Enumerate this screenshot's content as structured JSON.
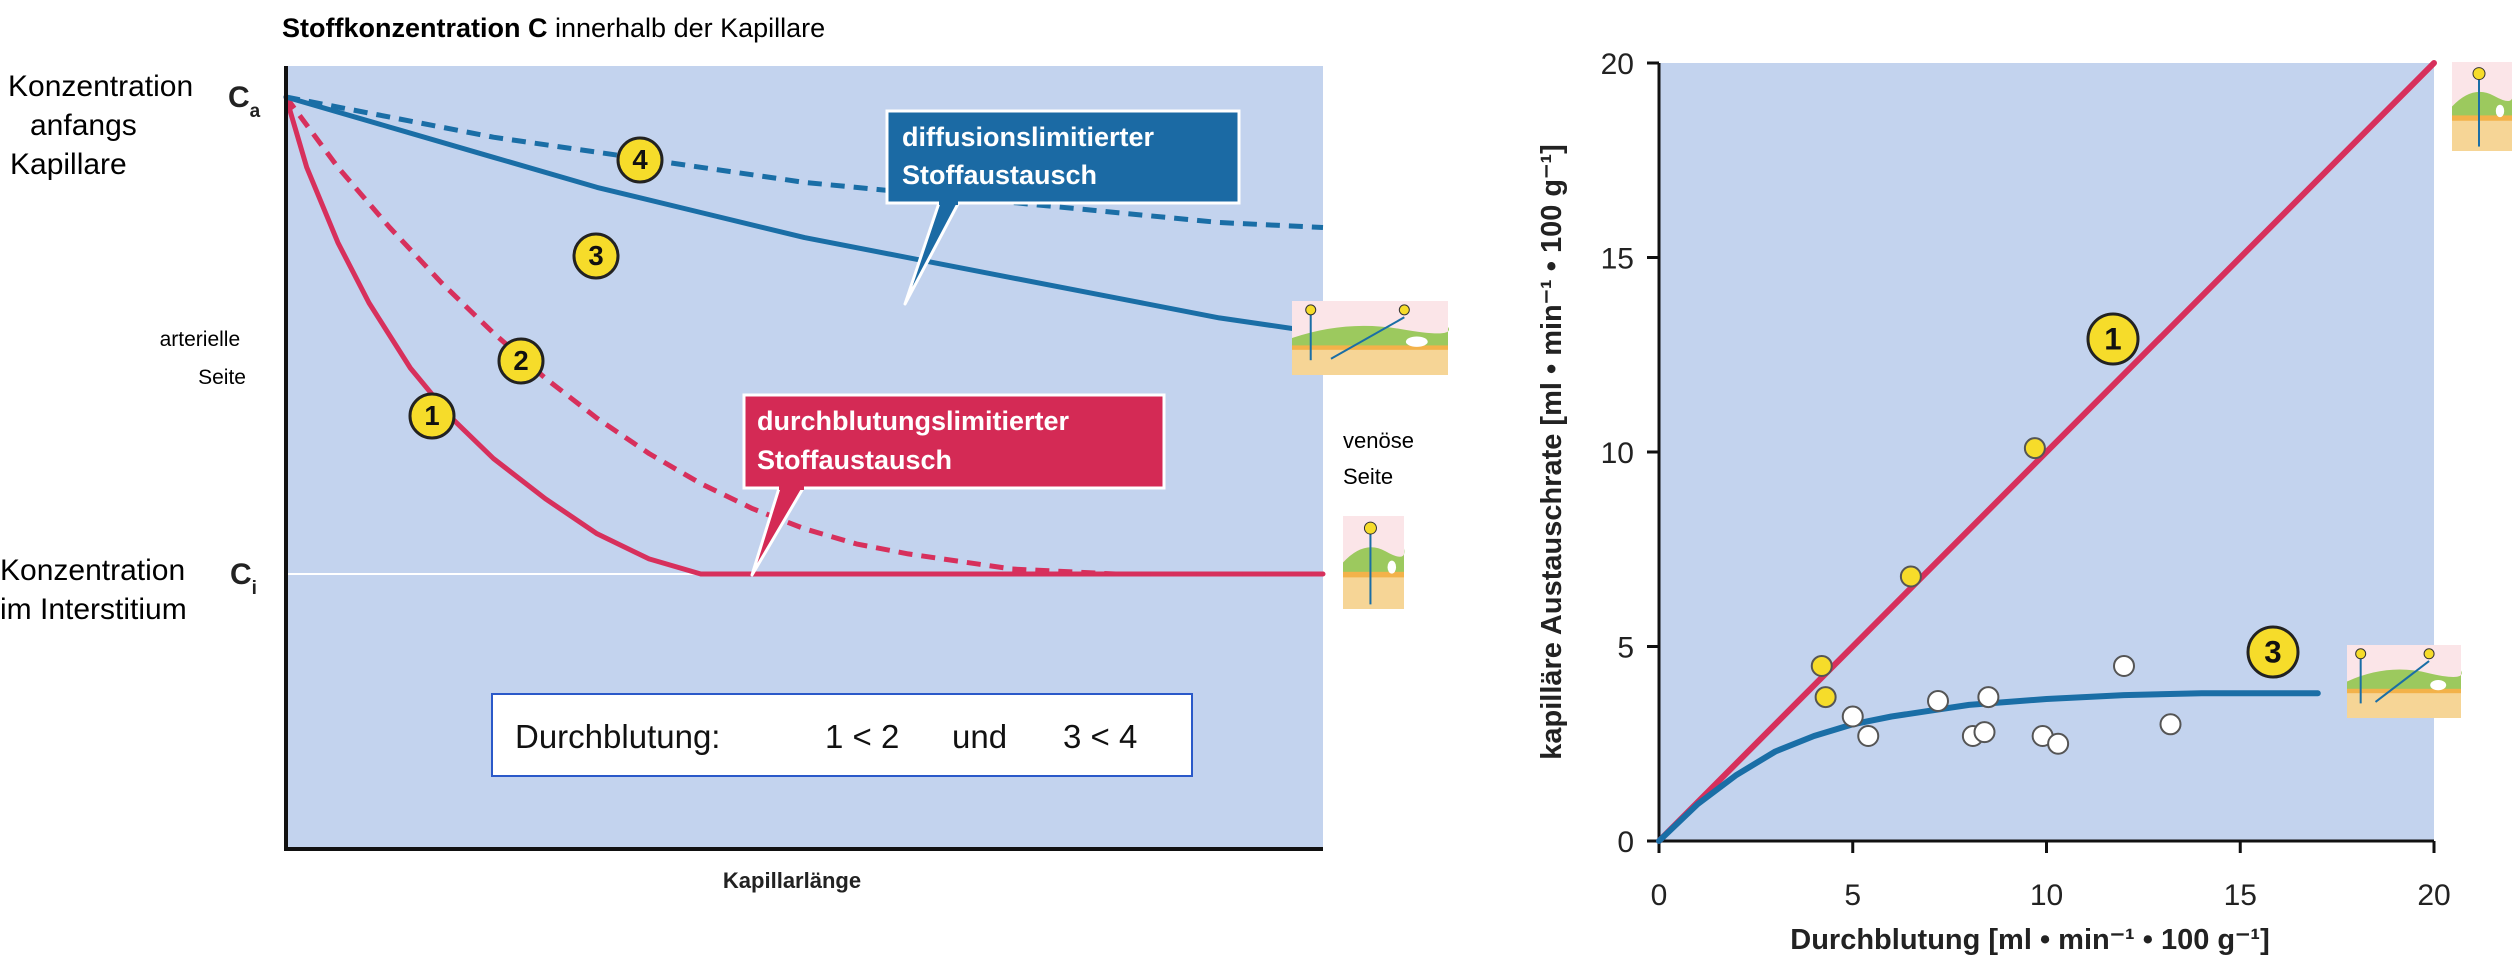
{
  "colors": {
    "plot_bg": "#c3d3ee",
    "red": "#d7305c",
    "blue": "#1a6ea6",
    "marker_yellow": "#f6dc2a",
    "box_red": "#d42a55",
    "box_blue": "#1b6aa4"
  },
  "chart_data": [
    {
      "type": "line",
      "title_bold": "Stoffkonzentration C",
      "title_rest": " innerhalb der Kapillare",
      "xlabel": "Kapillarlänge",
      "ylabel": "",
      "x_ticks": [],
      "y_tick_labels": {
        "top": "C",
        "top_sub": "a",
        "bottom": "C",
        "bottom_sub": "i"
      },
      "left_labels": {
        "top": [
          "Konzentration",
          "anfangs",
          "Kapillare"
        ],
        "mid": [
          "arterielle",
          "Seite"
        ],
        "bottom": [
          "Konzentration",
          "im Interstitium"
        ]
      },
      "right_label": [
        "venöse",
        "Seite"
      ],
      "xlim": [
        0,
        1
      ],
      "ylim": [
        0,
        1
      ],
      "series": [
        {
          "id": "1",
          "style": "solid",
          "color": "red",
          "x": [
            0,
            0.02,
            0.05,
            0.08,
            0.12,
            0.16,
            0.2,
            0.25,
            0.3,
            0.35,
            0.4,
            0.5,
            0.6,
            0.8,
            1.0
          ],
          "y": [
            1,
            0.86,
            0.71,
            0.59,
            0.46,
            0.36,
            0.28,
            0.2,
            0.13,
            0.08,
            0.05,
            0.05,
            0.05,
            0.05,
            0.05
          ]
        },
        {
          "id": "2",
          "style": "dashed",
          "color": "red",
          "x": [
            0,
            0.05,
            0.1,
            0.15,
            0.2,
            0.25,
            0.3,
            0.35,
            0.4,
            0.45,
            0.5,
            0.55,
            0.6,
            0.7,
            0.8,
            1.0
          ],
          "y": [
            1,
            0.86,
            0.74,
            0.63,
            0.53,
            0.44,
            0.36,
            0.29,
            0.23,
            0.18,
            0.14,
            0.11,
            0.09,
            0.06,
            0.05,
            0.05
          ]
        },
        {
          "id": "3",
          "style": "solid",
          "color": "blue",
          "x": [
            0,
            0.1,
            0.2,
            0.3,
            0.4,
            0.5,
            0.6,
            0.7,
            0.8,
            0.9,
            1.0
          ],
          "y": [
            1,
            0.94,
            0.88,
            0.82,
            0.77,
            0.72,
            0.68,
            0.64,
            0.6,
            0.56,
            0.53
          ]
        },
        {
          "id": "4",
          "style": "dashed",
          "color": "blue",
          "x": [
            0,
            0.1,
            0.2,
            0.3,
            0.4,
            0.5,
            0.6,
            0.7,
            0.8,
            0.9,
            1.0
          ],
          "y": [
            1,
            0.96,
            0.92,
            0.89,
            0.86,
            0.83,
            0.81,
            0.79,
            0.77,
            0.75,
            0.74
          ]
        }
      ],
      "curve_labels": [
        "1",
        "2",
        "3",
        "4"
      ],
      "callouts": {
        "diffusion": [
          "diffusionslimitierter",
          "Stoffaustausch"
        ],
        "perfusion": [
          "durchblutungslimitierter",
          "Stoffaustausch"
        ]
      },
      "note": {
        "prefix": "Durchblutung:",
        "part1": "1 < 2",
        "conj": "und",
        "part2": "3 < 4"
      }
    },
    {
      "type": "line",
      "xlabel": "Durchblutung [ml • min⁻¹ • 100 g⁻¹]",
      "ylabel": "kapilläre Austauschrate [ml • min⁻¹ • 100 g⁻¹]",
      "xlim": [
        0,
        20
      ],
      "ylim": [
        0,
        20
      ],
      "x_ticks": [
        0,
        5,
        10,
        15,
        20
      ],
      "y_ticks": [
        0,
        5,
        10,
        15,
        20
      ],
      "series": [
        {
          "id": "1",
          "color": "red",
          "style": "solid",
          "x": [
            0,
            20
          ],
          "y": [
            0,
            20
          ]
        },
        {
          "id": "3",
          "color": "blue",
          "style": "solid",
          "x": [
            0,
            1,
            2,
            3,
            4,
            5,
            6,
            7,
            8,
            10,
            12,
            14,
            17
          ],
          "y": [
            0,
            0.95,
            1.7,
            2.3,
            2.7,
            3.0,
            3.2,
            3.35,
            3.5,
            3.65,
            3.75,
            3.8,
            3.8
          ]
        }
      ],
      "points_yellow": [
        {
          "x": 4.2,
          "y": 4.5
        },
        {
          "x": 4.3,
          "y": 3.7
        },
        {
          "x": 6.5,
          "y": 6.8
        },
        {
          "x": 9.7,
          "y": 10.1
        }
      ],
      "points_white": [
        {
          "x": 5.0,
          "y": 3.2
        },
        {
          "x": 5.4,
          "y": 2.7
        },
        {
          "x": 7.2,
          "y": 3.6
        },
        {
          "x": 8.1,
          "y": 2.7
        },
        {
          "x": 8.4,
          "y": 2.8
        },
        {
          "x": 8.5,
          "y": 3.7
        },
        {
          "x": 9.9,
          "y": 2.7
        },
        {
          "x": 10.3,
          "y": 2.5
        },
        {
          "x": 12.0,
          "y": 4.5
        },
        {
          "x": 13.2,
          "y": 3.0
        }
      ],
      "curve_labels": [
        "1",
        "3"
      ]
    }
  ]
}
